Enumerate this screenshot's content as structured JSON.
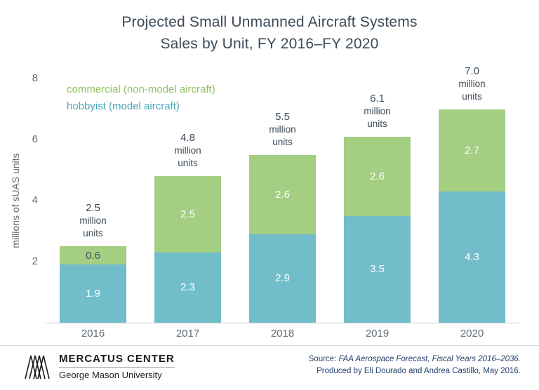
{
  "title": {
    "line1": "Projected Small Unmanned Aircraft Systems",
    "line2": "Sales by Unit, FY 2016–FY 2020"
  },
  "chart_data": {
    "type": "bar",
    "stacked": true,
    "title": "Projected Small Unmanned Aircraft Systems Sales by Unit, FY 2016–FY 2020",
    "categories": [
      "2016",
      "2017",
      "2018",
      "2019",
      "2020"
    ],
    "series": [
      {
        "name": "hobbyist (model aircraft)",
        "color": "#71bdca",
        "values": [
          1.9,
          2.3,
          2.9,
          3.5,
          4.3
        ],
        "label_colors": [
          "#ffffff",
          "#ffffff",
          "#ffffff",
          "#ffffff",
          "#ffffff"
        ]
      },
      {
        "name": "commercial (non-model aircraft)",
        "color": "#a4ce81",
        "values": [
          0.6,
          2.5,
          2.6,
          2.6,
          2.7
        ],
        "label_colors": [
          "#47545e",
          "#ffffff",
          "#ffffff",
          "#ffffff",
          "#ffffff"
        ]
      }
    ],
    "totals": [
      "2.5",
      "4.8",
      "5.5",
      "6.1",
      "7.0"
    ],
    "total_label_suffix": [
      "million",
      "units"
    ],
    "xlabel": "",
    "ylabel": "millions of sUAS units",
    "ylim": [
      0,
      8
    ],
    "yticks": [
      2,
      4,
      6,
      8
    ],
    "grid": false,
    "legend_position": "top-left",
    "legend": [
      {
        "label": "commercial (non-model aircraft)",
        "color": "#8fc163"
      },
      {
        "label": "hobbyist (model aircraft)",
        "color": "#4aa8bb"
      }
    ]
  },
  "footer": {
    "org_name": "MERCATUS CENTER",
    "org_sub": "George Mason University",
    "source_prefix": "Source: ",
    "source_italic": "FAA Aerospace Forecast, Fiscal Years 2016–2036.",
    "produced_line": "Produced by Eli Dourado and Andrea Castillo, May 2016."
  }
}
